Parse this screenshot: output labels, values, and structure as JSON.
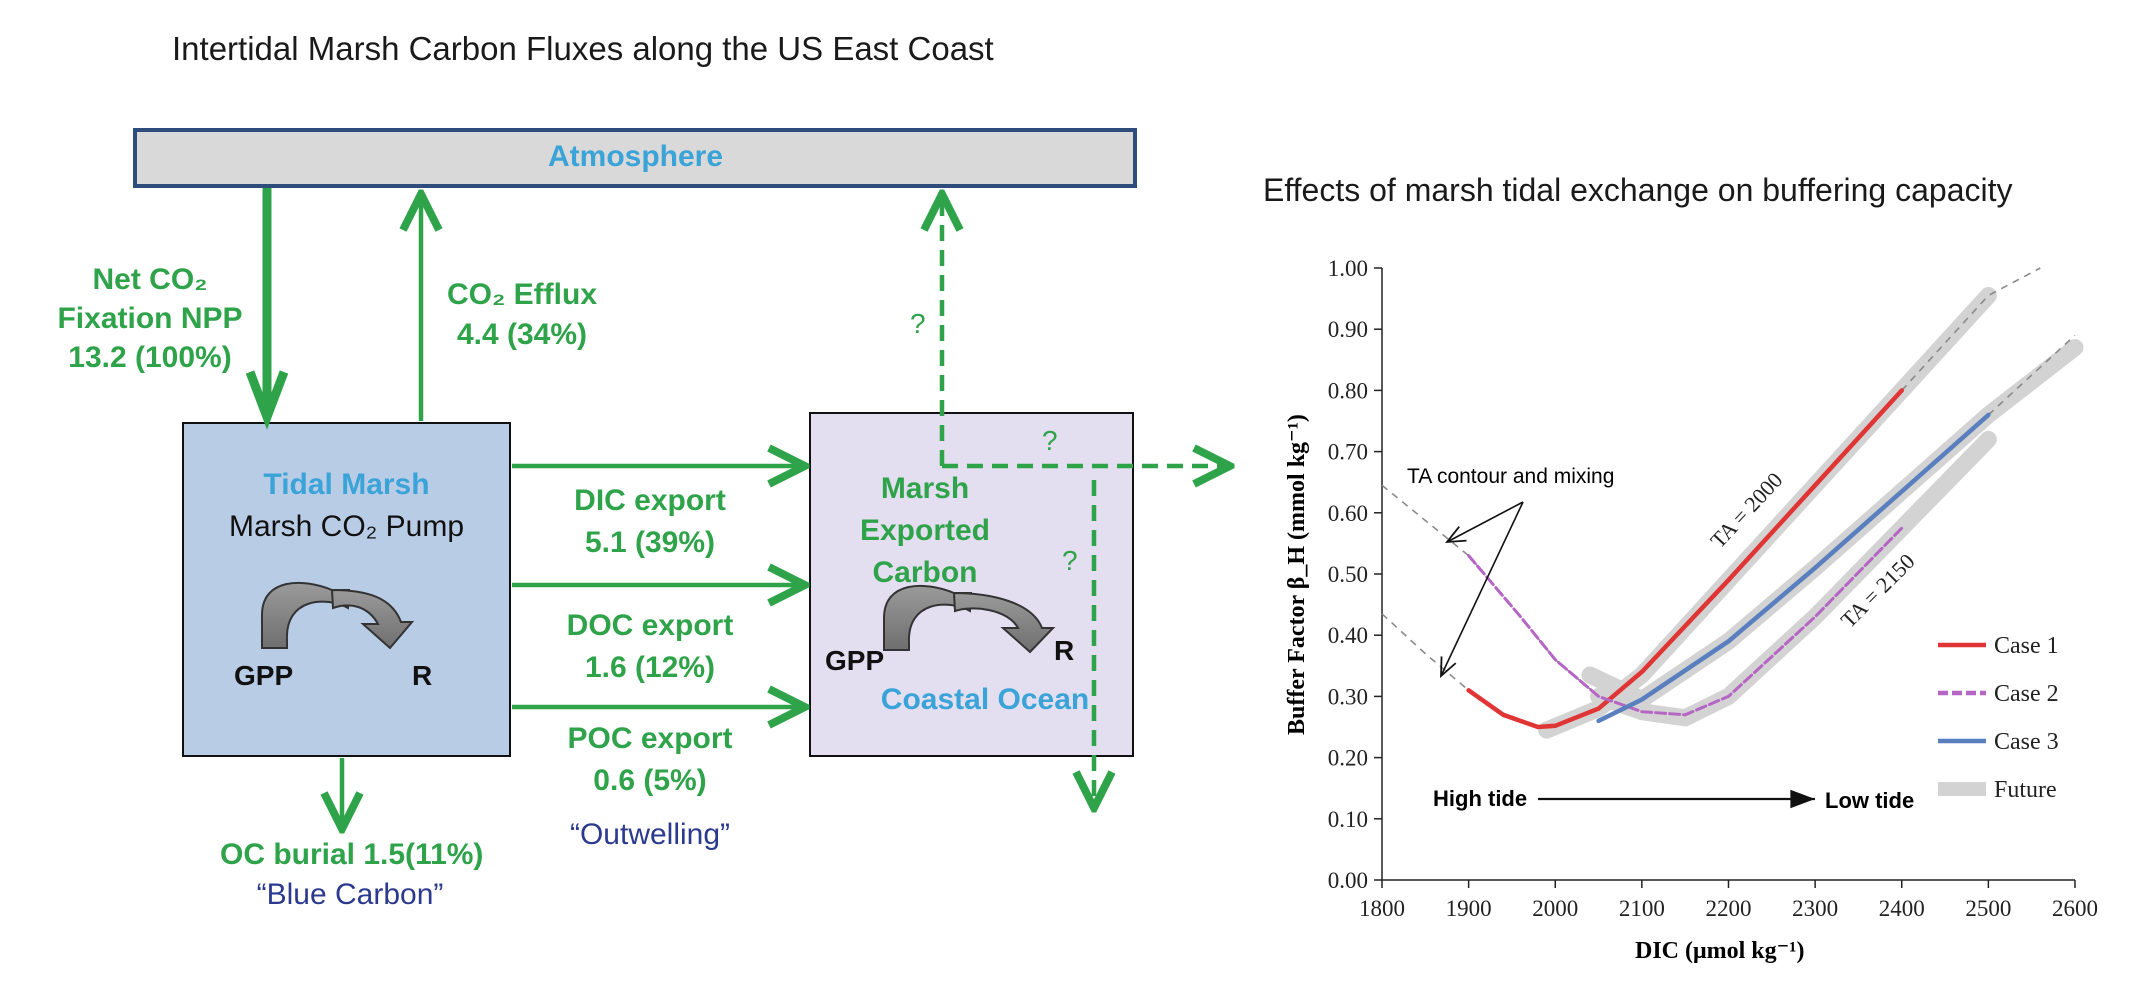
{
  "diagram": {
    "title": "Intertidal Marsh Carbon Fluxes along the US East Coast",
    "atmosphere": "Atmosphere",
    "net_co2": [
      "Net CO₂",
      "Fixation NPP",
      "13.2 (100%)"
    ],
    "co2_efflux": [
      "CO₂ Efflux",
      "4.4 (34%)"
    ],
    "tidal_marsh_title": "Tidal Marsh",
    "marsh_pump": "Marsh CO₂ Pump",
    "gpp": "GPP",
    "r": "R",
    "dic_export": [
      "DIC export",
      "5.1 (39%)"
    ],
    "doc_export": [
      "DOC export",
      "1.6 (12%)"
    ],
    "poc_export": [
      "POC export",
      "0.6 (5%)"
    ],
    "outwelling": "“Outwelling”",
    "oc_burial": "OC burial 1.5(11%)",
    "blue_carbon": "“Blue Carbon”",
    "marsh_exported": [
      "Marsh",
      "Exported",
      "Carbon"
    ],
    "coastal_ocean": "Coastal Ocean",
    "question_mark": "?"
  },
  "chart_data": {
    "type": "line",
    "title": "Effects of marsh tidal exchange on buffering capacity",
    "xlabel": "DIC (μmol kg⁻¹)",
    "ylabel": "Buffer Factor β_H (mmol kg⁻¹)",
    "xlim": [
      1800,
      2600
    ],
    "ylim": [
      0.0,
      1.0
    ],
    "x_ticks": [
      "1800",
      "1900",
      "2000",
      "2100",
      "2200",
      "2300",
      "2400",
      "2500",
      "2600"
    ],
    "y_ticks": [
      "0.00",
      "0.10",
      "0.20",
      "0.30",
      "0.40",
      "0.50",
      "0.60",
      "0.70",
      "0.80",
      "0.90",
      "1.00"
    ],
    "series": [
      {
        "name": "Case 1",
        "color": "#e03535",
        "x": [
          1900,
          1940,
          1980,
          2000,
          2050,
          2100,
          2200,
          2300,
          2400
        ],
        "y": [
          0.31,
          0.27,
          0.25,
          0.252,
          0.28,
          0.34,
          0.49,
          0.645,
          0.8
        ]
      },
      {
        "name": "Case 2",
        "color": "#b565c4",
        "x": [
          1900,
          1960,
          2000,
          2050,
          2100,
          2150,
          2200,
          2300,
          2400
        ],
        "y": [
          0.53,
          0.43,
          0.36,
          0.3,
          0.275,
          0.27,
          0.3,
          0.43,
          0.575
        ]
      },
      {
        "name": "Case 3",
        "color": "#5a7fbf",
        "x": [
          2050,
          2100,
          2200,
          2300,
          2400,
          2500
        ],
        "y": [
          0.26,
          0.295,
          0.39,
          0.51,
          0.635,
          0.76
        ]
      },
      {
        "name": "Future",
        "color": "#d3d3d3",
        "x": [],
        "y": []
      }
    ],
    "contour_labels": [
      "TA = 2000",
      "TA = 2150"
    ],
    "annotation": "TA contour and mixing",
    "high_tide": "High tide",
    "low_tide": "Low tide"
  }
}
